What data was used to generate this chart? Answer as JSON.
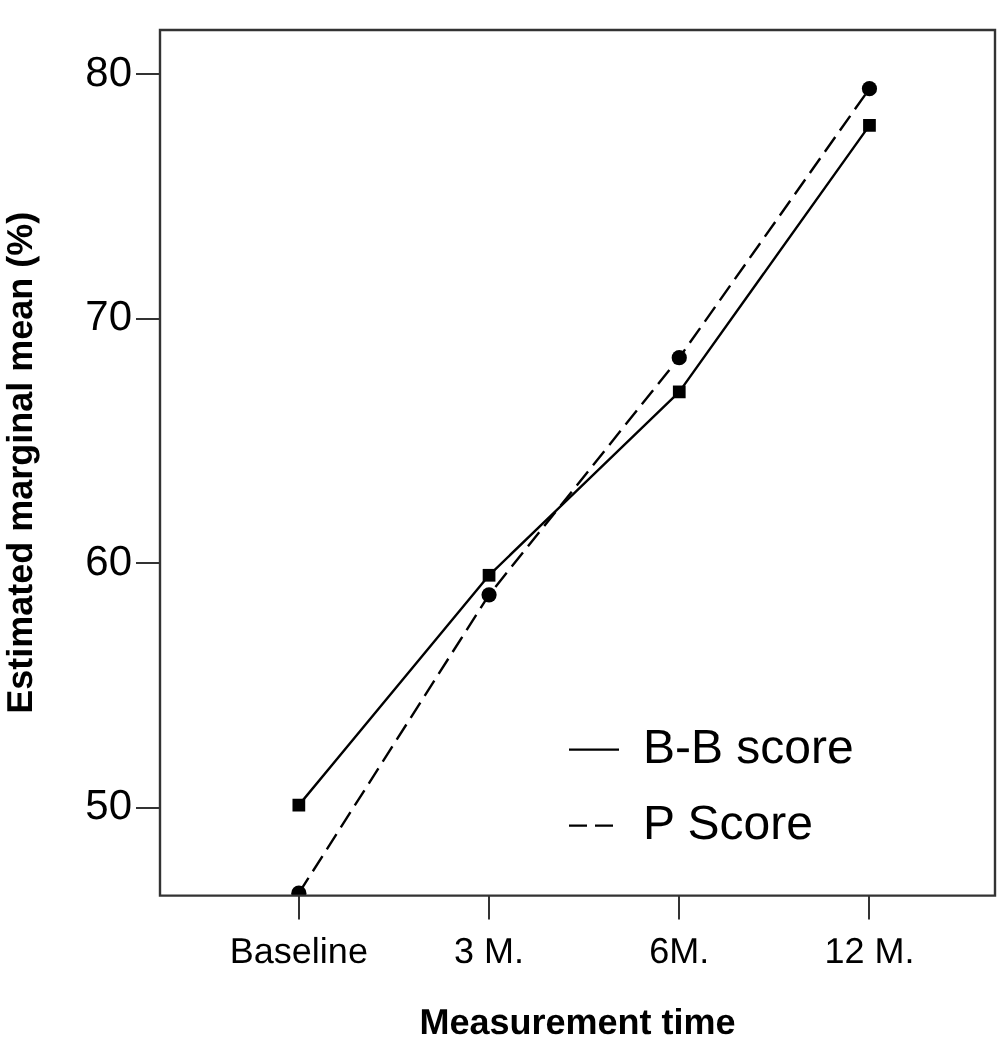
{
  "chart_data": {
    "type": "line",
    "xlabel": "Measurement time",
    "ylabel": "Estimated marginal mean (%)",
    "categories": [
      "Baseline",
      "3 M.",
      "6M.",
      "12 M."
    ],
    "series": [
      {
        "name": "B-B score",
        "color": "#000000",
        "values": [
          50.1,
          59.5,
          67.0,
          77.9
        ],
        "marker": "square",
        "line_style": "solid"
      },
      {
        "name": "P Score",
        "color": "#000000",
        "values": [
          46.5,
          58.7,
          68.4,
          79.4
        ],
        "marker": "circle",
        "line_style": "dashed"
      }
    ],
    "ylim": [
      46.4,
      81.8
    ],
    "yticks": [
      50,
      60,
      70,
      80
    ],
    "grid": false,
    "legend": "bottom right"
  }
}
